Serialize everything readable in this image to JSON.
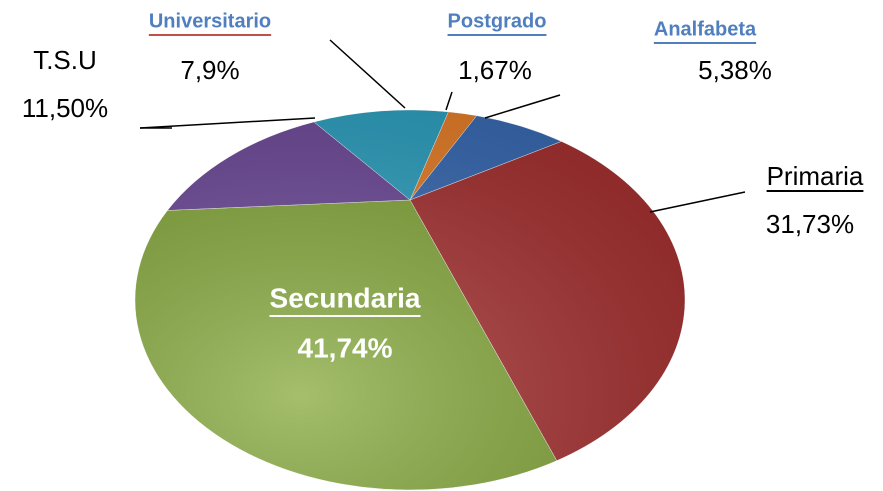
{
  "chart_data": {
    "type": "pie",
    "categories": [
      "Postgrado",
      "Analfabeta",
      "Primaria",
      "Secundaria",
      "T.S.U",
      "Universitario"
    ],
    "values": [
      1.67,
      5.38,
      31.73,
      41.74,
      11.5,
      7.9
    ],
    "value_labels": [
      "1,67%",
      "5,38%",
      "31,73%",
      "41,74%",
      "11,50%",
      "7,9%"
    ],
    "colors": [
      "#e8802a",
      "#3a6cb5",
      "#a83232",
      "#86a93c",
      "#6f4b9b",
      "#2fa2c2"
    ]
  }
}
